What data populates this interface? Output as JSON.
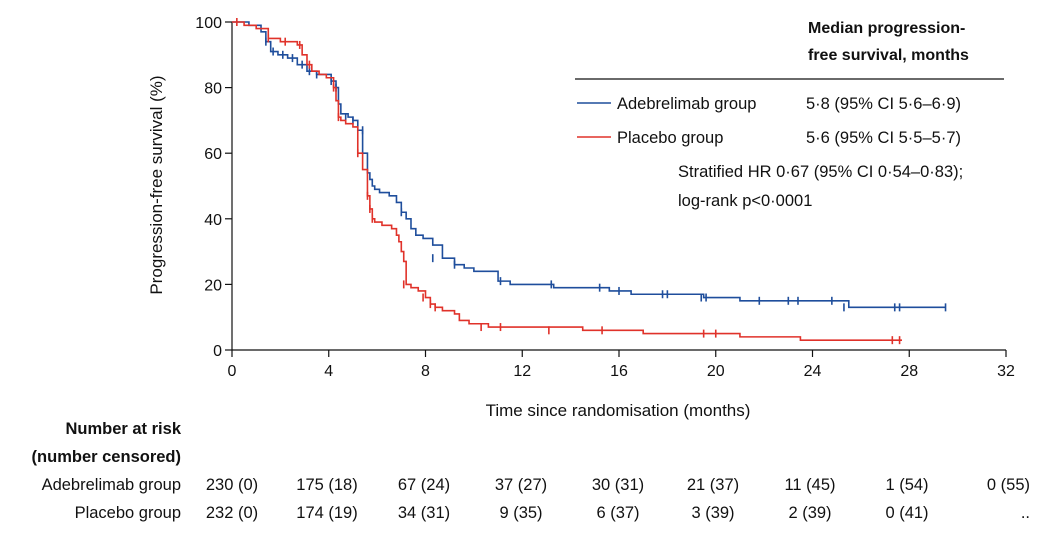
{
  "chart_data": {
    "type": "line",
    "subtype": "kaplan-meier",
    "xlabel": "Time since randomisation (months)",
    "ylabel": "Progression-free survival (%)",
    "xlim": [
      0,
      32
    ],
    "ylim": [
      0,
      100
    ],
    "xticks": [
      0,
      4,
      8,
      12,
      16,
      20,
      24,
      28,
      32
    ],
    "yticks": [
      0,
      20,
      40,
      60,
      80,
      100
    ],
    "grid": false,
    "legend": {
      "placement": "top-right",
      "header": [
        "Median progression-",
        "free survival, months"
      ],
      "entries": [
        {
          "label": "Adebrelimab group",
          "value": "5·8 (95% CI 5·6–6·9)"
        },
        {
          "label": "Placebo group",
          "value": "5·6 (95% CI 5·5–5·7)"
        }
      ],
      "note": [
        "Stratified HR 0·67 (95% CI 0·54–0·83);",
        "log-rank p<0·0001"
      ]
    },
    "series": [
      {
        "name": "Adebrelimab group",
        "color": "#1f4e9c",
        "x": [
          0,
          0.7,
          1.2,
          1.4,
          1.6,
          1.9,
          2.3,
          2.7,
          3.1,
          3.5,
          3.9,
          4.1,
          4.3,
          4.4,
          4.5,
          4.6,
          4.8,
          5.0,
          5.2,
          5.4,
          5.6,
          5.7,
          5.8,
          5.9,
          6.1,
          6.5,
          6.8,
          7.0,
          7.2,
          7.4,
          7.6,
          7.9,
          8.3,
          8.7,
          9.2,
          9.6,
          10.0,
          11.0,
          11.5,
          13.3,
          14.5,
          15.6,
          16.5,
          17.5,
          18.5,
          19.5,
          20.5,
          21.0,
          22.5,
          23.5,
          24.5,
          25.2,
          25.5,
          26.5,
          29.5
        ],
        "y": [
          100,
          99,
          97,
          94,
          91,
          90,
          89,
          87,
          85,
          84,
          84,
          82,
          80,
          75,
          72,
          72,
          71,
          70,
          67,
          60,
          54,
          52,
          50,
          49,
          48,
          47,
          45,
          42,
          40,
          37,
          35,
          34,
          32,
          28,
          26,
          25,
          24,
          21,
          20,
          19,
          19,
          18,
          17,
          17,
          17,
          16,
          16,
          15,
          15,
          15,
          15,
          15,
          13,
          13,
          13
        ],
        "censor_x": [
          1.4,
          1.7,
          2.1,
          2.5,
          2.9,
          3.2,
          3.5,
          4.1,
          4.3,
          4.7,
          5.0,
          5.4,
          7.0,
          8.3,
          9.2,
          11.1,
          13.2,
          15.2,
          16.0,
          17.8,
          18.0,
          19.4,
          19.6,
          21.8,
          23.0,
          23.4,
          24.8,
          25.3,
          27.4,
          27.6,
          29.5
        ],
        "censor_y": [
          94,
          91,
          90,
          89,
          87,
          85,
          84,
          82,
          80,
          71,
          70,
          67,
          42,
          28,
          26,
          21,
          20,
          19,
          18,
          17,
          17,
          16,
          16,
          15,
          15,
          15,
          15,
          13,
          13,
          13,
          13
        ]
      },
      {
        "name": "Placebo group",
        "color": "#e0322a",
        "x": [
          0,
          0.5,
          1.0,
          1.5,
          2.0,
          2.7,
          2.9,
          3.1,
          3.3,
          3.6,
          3.9,
          4.2,
          4.3,
          4.4,
          4.5,
          4.7,
          5.0,
          5.2,
          5.4,
          5.6,
          5.7,
          5.8,
          5.9,
          6.2,
          6.6,
          6.8,
          6.9,
          7.0,
          7.1,
          7.2,
          7.4,
          7.7,
          8.0,
          8.2,
          8.4,
          8.7,
          9.2,
          9.4,
          9.8,
          10.6,
          11.5,
          14.5,
          17.0,
          19.0,
          21.0,
          23.5,
          25.0,
          27.7
        ],
        "y": [
          100,
          99,
          98,
          95,
          94,
          93,
          90,
          87,
          85,
          84,
          83,
          80,
          76,
          71,
          70,
          69,
          68,
          60,
          55,
          47,
          43,
          40,
          39,
          38,
          37,
          35,
          33,
          30,
          27,
          20,
          19,
          18,
          16,
          14,
          13,
          12,
          11,
          9,
          8,
          7,
          7,
          6,
          5,
          5,
          4,
          3,
          3,
          3
        ],
        "censor_x": [
          0.2,
          1.5,
          2.2,
          2.8,
          3.2,
          4.2,
          4.4,
          5.2,
          5.6,
          5.7,
          5.8,
          7.1,
          7.9,
          8.2,
          8.4,
          10.3,
          11.1,
          13.1,
          15.3,
          19.5,
          20.0,
          27.3,
          27.6
        ],
        "censor_y": [
          100,
          95,
          94,
          93,
          87,
          80,
          71,
          60,
          47,
          43,
          40,
          20,
          16,
          14,
          13,
          7,
          7,
          6,
          6,
          5,
          5,
          3,
          3
        ]
      }
    ],
    "risk_table": {
      "title": [
        "Number at risk",
        "(number censored)"
      ],
      "rows": [
        {
          "label": "Adebrelimab group",
          "values": [
            "230 (0)",
            "175 (18)",
            "67 (24)",
            "37 (27)",
            "30 (31)",
            "21 (37)",
            "11 (45)",
            "1 (54)",
            "0 (55)"
          ]
        },
        {
          "label": "Placebo group",
          "values": [
            "232 (0)",
            "174 (19)",
            "34 (31)",
            "9 (35)",
            "6 (37)",
            "3 (39)",
            "2 (39)",
            "0 (41)",
            ".."
          ]
        }
      ]
    }
  }
}
